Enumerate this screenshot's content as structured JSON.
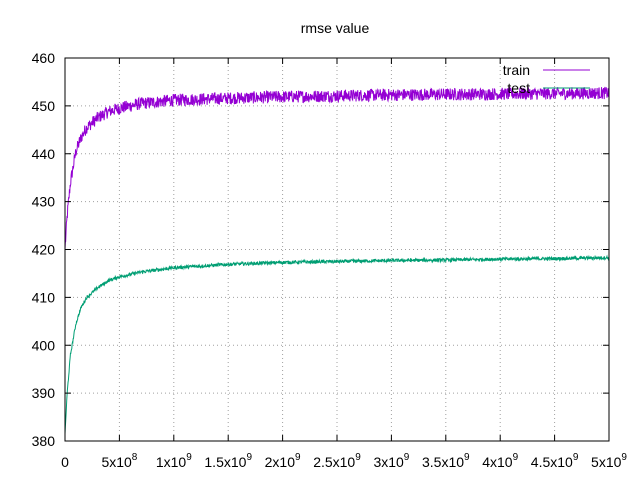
{
  "chart_data": {
    "type": "line",
    "title": "rmse value",
    "xlabel": "",
    "ylabel": "",
    "xlim": [
      0,
      5000000000
    ],
    "ylim": [
      380,
      460
    ],
    "grid": true,
    "legend_position": "top-right",
    "x_ticks": [
      {
        "value": 0,
        "base": "0",
        "exp": ""
      },
      {
        "value": 500000000,
        "base": "5x10",
        "exp": "8"
      },
      {
        "value": 1000000000,
        "base": "1x10",
        "exp": "9"
      },
      {
        "value": 1500000000,
        "base": "1.5x10",
        "exp": "9"
      },
      {
        "value": 2000000000,
        "base": "2x10",
        "exp": "9"
      },
      {
        "value": 2500000000,
        "base": "2.5x10",
        "exp": "9"
      },
      {
        "value": 3000000000,
        "base": "3x10",
        "exp": "9"
      },
      {
        "value": 3500000000,
        "base": "3.5x10",
        "exp": "9"
      },
      {
        "value": 4000000000,
        "base": "4x10",
        "exp": "9"
      },
      {
        "value": 4500000000,
        "base": "4.5x10",
        "exp": "9"
      },
      {
        "value": 5000000000,
        "base": "5x10",
        "exp": "9"
      }
    ],
    "y_ticks": [
      380,
      390,
      400,
      410,
      420,
      430,
      440,
      450,
      460
    ],
    "series": [
      {
        "name": "train",
        "color": "#9400d3",
        "x": [
          0,
          20000000,
          50000000,
          100000000,
          150000000,
          200000000,
          300000000,
          400000000,
          500000000,
          700000000,
          1000000000,
          1500000000,
          2000000000,
          2500000000,
          3000000000,
          3500000000,
          4000000000,
          4500000000,
          5000000000
        ],
        "y": [
          420,
          427,
          434,
          440.5,
          443.5,
          445.5,
          447.5,
          448.8,
          449.5,
          450.5,
          451.2,
          451.6,
          451.9,
          452.1,
          452.3,
          452.4,
          452.5,
          452.6,
          452.7
        ]
      },
      {
        "name": "test",
        "color": "#009e73",
        "x": [
          0,
          20000000,
          50000000,
          100000000,
          150000000,
          200000000,
          300000000,
          400000000,
          500000000,
          700000000,
          1000000000,
          1500000000,
          2000000000,
          2500000000,
          3000000000,
          3500000000,
          4000000000,
          4500000000,
          5000000000
        ],
        "y": [
          381.5,
          390,
          398,
          404.5,
          408,
          410,
          412,
          413.5,
          414.3,
          415.3,
          416.2,
          416.9,
          417.3,
          417.5,
          417.7,
          417.8,
          418,
          418.1,
          418.3
        ]
      }
    ]
  }
}
